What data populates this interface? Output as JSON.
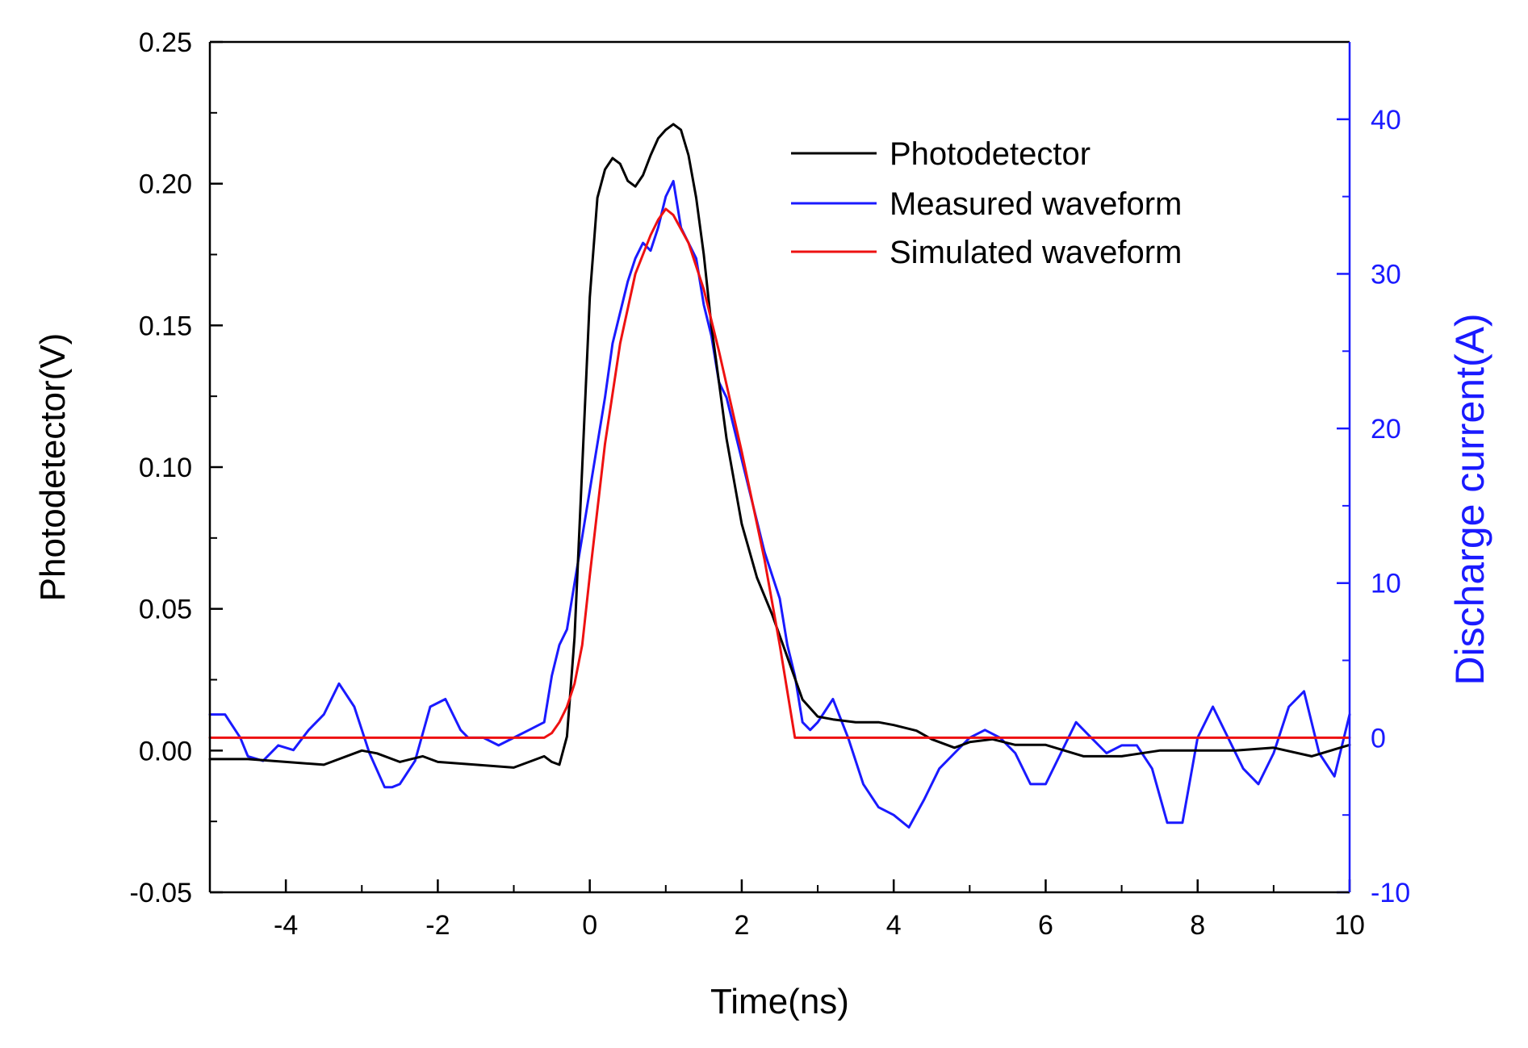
{
  "chart_data": {
    "type": "line",
    "title": "",
    "xlabel": "Time(ns)",
    "ylabel_left": "Photodetector(V)",
    "ylabel_right": "Discharge current(A)",
    "xlim": [
      -5,
      10
    ],
    "ylim_left": [
      -0.05,
      0.25
    ],
    "ylim_right": [
      -10,
      45
    ],
    "x_ticks": [
      -4,
      -2,
      0,
      2,
      4,
      6,
      8,
      10
    ],
    "x_tick_labels": [
      "-4",
      "-2",
      "0",
      "2",
      "4",
      "6",
      "8",
      "10"
    ],
    "y_left_ticks": [
      -0.05,
      0.0,
      0.05,
      0.1,
      0.15,
      0.2,
      0.25
    ],
    "y_left_tick_labels": [
      "-0.05",
      "0.00",
      "0.05",
      "0.10",
      "0.15",
      "0.20",
      "0.25"
    ],
    "y_right_ticks": [
      -10,
      0,
      10,
      20,
      30,
      40
    ],
    "y_right_tick_labels": [
      "-10",
      "0",
      "10",
      "20",
      "30",
      "40"
    ],
    "grid": false,
    "legend_position": "top-right",
    "right_axis_color": "#1a1aff",
    "series": [
      {
        "name": "Photodetector",
        "axis": "left",
        "color": "#000000",
        "x": [
          -5,
          -4.5,
          -4,
          -3.5,
          -3,
          -2.8,
          -2.5,
          -2.2,
          -2,
          -1.5,
          -1,
          -0.8,
          -0.6,
          -0.5,
          -0.4,
          -0.3,
          -0.2,
          -0.1,
          0,
          0.1,
          0.2,
          0.3,
          0.4,
          0.5,
          0.6,
          0.7,
          0.8,
          0.9,
          1.0,
          1.1,
          1.2,
          1.3,
          1.4,
          1.5,
          1.6,
          1.7,
          1.8,
          2.0,
          2.2,
          2.4,
          2.6,
          2.8,
          3.0,
          3.2,
          3.5,
          3.8,
          4.0,
          4.3,
          4.5,
          4.8,
          5.0,
          5.3,
          5.6,
          6.0,
          6.5,
          7.0,
          7.5,
          8.0,
          8.5,
          9.0,
          9.5,
          10.0
        ],
        "y": [
          -0.003,
          -0.003,
          -0.004,
          -0.005,
          0.0,
          -0.001,
          -0.004,
          -0.002,
          -0.004,
          -0.005,
          -0.006,
          -0.004,
          -0.002,
          -0.004,
          -0.005,
          0.005,
          0.04,
          0.1,
          0.16,
          0.195,
          0.205,
          0.209,
          0.207,
          0.201,
          0.199,
          0.203,
          0.21,
          0.216,
          0.219,
          0.221,
          0.219,
          0.21,
          0.195,
          0.175,
          0.15,
          0.13,
          0.11,
          0.08,
          0.061,
          0.048,
          0.033,
          0.018,
          0.012,
          0.011,
          0.01,
          0.01,
          0.009,
          0.007,
          0.004,
          0.001,
          0.003,
          0.004,
          0.002,
          0.002,
          -0.002,
          -0.002,
          0.0,
          0.0,
          0.0,
          0.001,
          -0.002,
          0.002
        ]
      },
      {
        "name": "Measured waveform",
        "axis": "right",
        "color": "#1a1aff",
        "x": [
          -5,
          -4.8,
          -4.6,
          -4.5,
          -4.3,
          -4.1,
          -3.9,
          -3.7,
          -3.5,
          -3.3,
          -3.1,
          -2.9,
          -2.7,
          -2.6,
          -2.5,
          -2.3,
          -2.1,
          -1.9,
          -1.7,
          -1.6,
          -1.4,
          -1.2,
          -1.0,
          -0.8,
          -0.6,
          -0.5,
          -0.4,
          -0.3,
          -0.2,
          -0.1,
          0.0,
          0.1,
          0.2,
          0.3,
          0.4,
          0.5,
          0.6,
          0.7,
          0.8,
          0.9,
          1.0,
          1.1,
          1.2,
          1.3,
          1.4,
          1.5,
          1.6,
          1.7,
          1.8,
          1.9,
          2.0,
          2.1,
          2.2,
          2.3,
          2.4,
          2.5,
          2.6,
          2.7,
          2.8,
          2.9,
          3.0,
          3.2,
          3.4,
          3.6,
          3.8,
          4.0,
          4.2,
          4.4,
          4.6,
          4.8,
          5.0,
          5.2,
          5.4,
          5.6,
          5.8,
          6.0,
          6.2,
          6.4,
          6.6,
          6.8,
          7.0,
          7.2,
          7.4,
          7.6,
          7.8,
          8.0,
          8.2,
          8.4,
          8.6,
          8.8,
          9.0,
          9.2,
          9.4,
          9.6,
          9.8,
          10.0
        ],
        "y": [
          1.5,
          1.5,
          0,
          -1.2,
          -1.5,
          -0.5,
          -0.8,
          0.5,
          1.5,
          3.5,
          2.0,
          -1.0,
          -3.2,
          -3.2,
          -3.0,
          -1.5,
          2.0,
          2.5,
          0.5,
          0.0,
          0.0,
          -0.5,
          0.0,
          0.5,
          1.0,
          4.0,
          6.0,
          7.0,
          10.0,
          13.0,
          16.0,
          19.0,
          22.0,
          25.5,
          27.5,
          29.5,
          31.0,
          32.0,
          31.5,
          33.0,
          35.0,
          36.0,
          33.0,
          32.0,
          31.0,
          28.0,
          26.0,
          23.0,
          22.0,
          20.0,
          18.0,
          16.0,
          14.0,
          12.0,
          10.5,
          9.0,
          6.0,
          4.0,
          1.0,
          0.5,
          1.0,
          2.5,
          0.0,
          -3.0,
          -4.5,
          -5.0,
          -5.8,
          -4.0,
          -2.0,
          -1.0,
          0.0,
          0.5,
          0.0,
          -1.0,
          -3.0,
          -3.0,
          -1.0,
          1.0,
          0.0,
          -1.0,
          -0.5,
          -0.5,
          -2.0,
          -5.5,
          -5.5,
          0.0,
          2.0,
          0.0,
          -2.0,
          -3.0,
          -1.0,
          2.0,
          3.0,
          -1.0,
          -2.5,
          1.5
        ]
      },
      {
        "name": "Simulated waveform",
        "axis": "right",
        "color": "#ee1111",
        "x": [
          -5,
          -0.6,
          -0.5,
          -0.4,
          -0.3,
          -0.2,
          -0.1,
          0.0,
          0.2,
          0.4,
          0.6,
          0.8,
          0.9,
          1.0,
          1.1,
          1.3,
          1.5,
          1.7,
          2.0,
          2.3,
          2.5,
          2.6,
          2.7,
          3.0,
          10.0
        ],
        "y": [
          0,
          0,
          0.3,
          1.0,
          2.0,
          3.5,
          6.0,
          10.5,
          19.0,
          25.5,
          30.0,
          32.5,
          33.5,
          34.2,
          33.8,
          32.0,
          29.0,
          25.0,
          18.5,
          11.5,
          6.0,
          3.0,
          0,
          0,
          0
        ]
      }
    ]
  }
}
